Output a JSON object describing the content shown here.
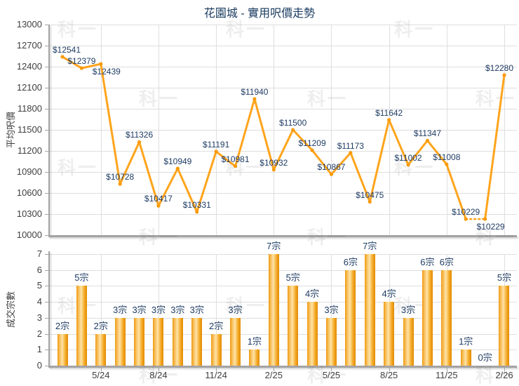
{
  "title": "花園城 - 實用呎價走勢",
  "watermark": "科一",
  "x_axis": {
    "tick_labels": [
      "5/24",
      "8/24",
      "11/24",
      "2/25",
      "5/25",
      "8/25",
      "11/25",
      "2/26"
    ],
    "tick_indices": [
      2,
      5,
      8,
      11,
      14,
      17,
      20,
      23
    ]
  },
  "chart_data": [
    {
      "type": "line",
      "name": "average-price-per-sqft-trend",
      "ylabel": "平均呎價",
      "ylim": [
        10000,
        13000
      ],
      "yticks": [
        13000,
        12700,
        12400,
        12100,
        11800,
        11500,
        11200,
        10900,
        10600,
        10300,
        10000
      ],
      "grid": true,
      "line_color": "#FFA41C",
      "marker_color": "#F99B0C",
      "label_color": "#1F3C64",
      "values": [
        12541,
        12379,
        12439,
        10728,
        11326,
        10417,
        10949,
        10331,
        11191,
        10981,
        11940,
        10932,
        11500,
        11209,
        10867,
        11173,
        10475,
        11642,
        11002,
        11347,
        11008,
        10229,
        10229,
        12280
      ],
      "point_labels": [
        "$12541",
        "$12379",
        "$12439",
        "$10728",
        "$11326",
        "$10417",
        "$10949",
        "$10331",
        "$11191",
        "$10981",
        "$11940",
        "$10932",
        "$11500",
        "$11209",
        "$10867",
        "$11173",
        "$10475",
        "$11642",
        "$11002",
        "$11347",
        "$11008",
        "$10229",
        "$10229",
        "$12280"
      ],
      "dotted_segments": [
        [
          21,
          22
        ]
      ],
      "label_below_indices": [
        2,
        22
      ]
    },
    {
      "type": "bar",
      "name": "transaction-count",
      "ylabel": "成交宗數",
      "ylim": [
        0,
        7
      ],
      "yticks": [
        7,
        6,
        5,
        4,
        3,
        2,
        1,
        0
      ],
      "grid": true,
      "bar_color_edge": "#E18A00",
      "bar_color_mid": "#FFE3A6",
      "values": [
        2,
        5,
        2,
        3,
        3,
        3,
        3,
        3,
        2,
        3,
        1,
        7,
        5,
        4,
        3,
        6,
        7,
        4,
        3,
        6,
        6,
        1,
        0,
        5
      ],
      "bar_labels": [
        "2宗",
        "5宗",
        "2宗",
        "3宗",
        "3宗",
        "3宗",
        "3宗",
        "3宗",
        "2宗",
        "3宗",
        "1宗",
        "7宗",
        "5宗",
        "4宗",
        "3宗",
        "6宗",
        "7宗",
        "4宗",
        "3宗",
        "6宗",
        "6宗",
        "1宗",
        "0宗",
        "5宗"
      ]
    }
  ]
}
